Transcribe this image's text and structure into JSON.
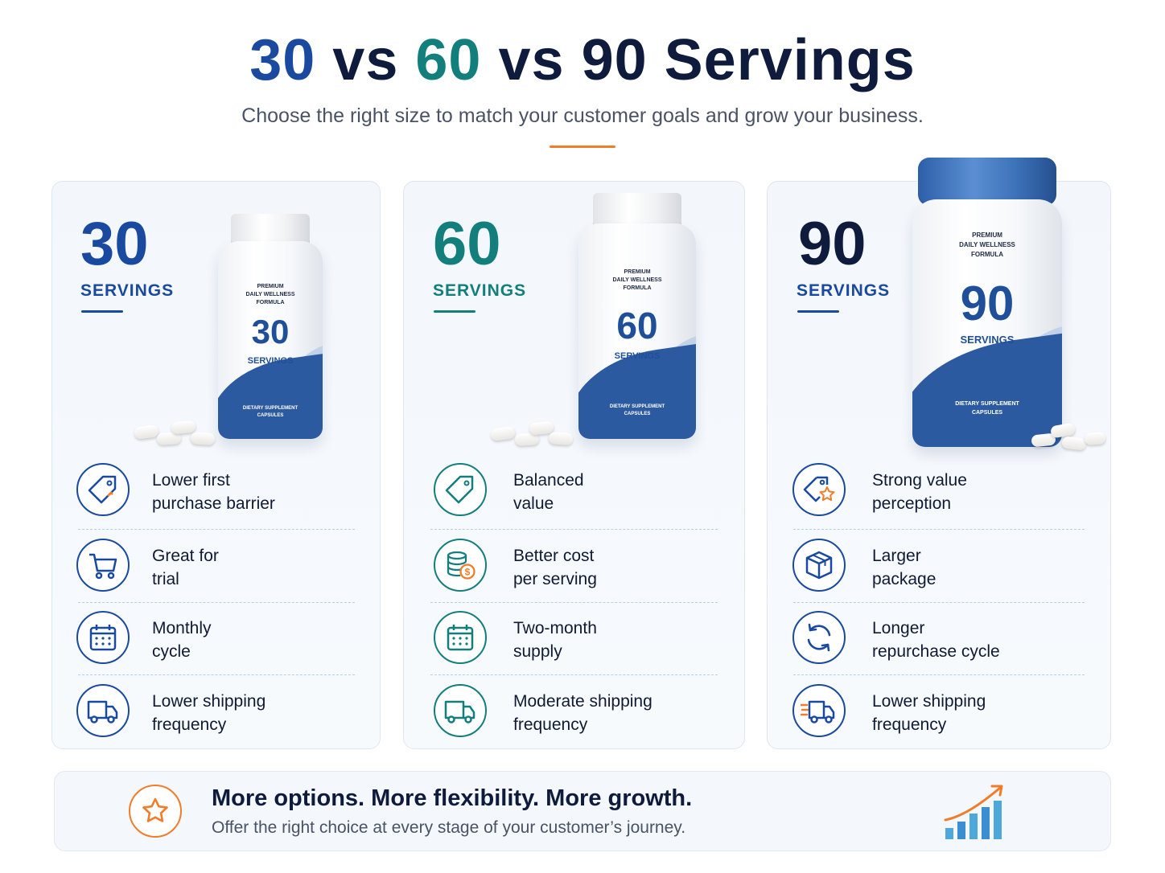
{
  "header": {
    "title_parts": [
      "30",
      " vs ",
      "60",
      " vs ",
      "90",
      " Servings"
    ],
    "subtitle": "Choose the right size to match your customer goals and grow your business."
  },
  "colors": {
    "navy": "#0f1b3d",
    "blue": "#1a4aa0",
    "teal": "#137f7c",
    "orange": "#f07d2a"
  },
  "cards": [
    {
      "number": "30",
      "label": "SERVINGS",
      "bottle": {
        "line1": "PREMIUM",
        "line2": "DAILY WELLNESS",
        "line3": "FORMULA",
        "number": "30",
        "servings": "SERVINGS",
        "footer1": "DIETARY SUPPLEMENT",
        "footer2": "CAPSULES"
      },
      "features": [
        {
          "icon": "price-tag-icon",
          "line1": "Lower first",
          "line2": "purchase barrier"
        },
        {
          "icon": "shopping-cart-icon",
          "line1": "Great for",
          "line2": "trial"
        },
        {
          "icon": "calendar-icon",
          "line1": "Monthly",
          "line2": "cycle"
        },
        {
          "icon": "delivery-truck-icon",
          "line1": "Lower shipping",
          "line2": "frequency"
        }
      ]
    },
    {
      "number": "60",
      "label": "SERVINGS",
      "bottle": {
        "line1": "PREMIUM",
        "line2": "DAILY WELLNESS",
        "line3": "FORMULA",
        "number": "60",
        "servings": "SERVINGS",
        "footer1": "DIETARY SUPPLEMENT",
        "footer2": "CAPSULES"
      },
      "features": [
        {
          "icon": "price-tag-icon",
          "line1": "Balanced",
          "line2": "value"
        },
        {
          "icon": "coins-dollar-icon",
          "line1": "Better cost",
          "line2": "per serving"
        },
        {
          "icon": "calendar-icon",
          "line1": "Two-month",
          "line2": "supply"
        },
        {
          "icon": "delivery-truck-icon",
          "line1": "Moderate shipping",
          "line2": "frequency"
        }
      ]
    },
    {
      "number": "90",
      "label": "SERVINGS",
      "bottle": {
        "line1": "PREMIUM",
        "line2": "DAILY WELLNESS",
        "line3": "FORMULA",
        "number": "90",
        "servings": "SERVINGS",
        "footer1": "DIETARY SUPPLEMENT",
        "footer2": "CAPSULES"
      },
      "features": [
        {
          "icon": "tag-star-icon",
          "line1": "Strong value",
          "line2": "perception"
        },
        {
          "icon": "package-box-icon",
          "line1": "Larger",
          "line2": "package"
        },
        {
          "icon": "refresh-cycle-icon",
          "line1": "Longer",
          "line2": "repurchase cycle"
        },
        {
          "icon": "fast-delivery-truck-icon",
          "line1": "Lower shipping",
          "line2": "frequency"
        }
      ]
    }
  ],
  "banner": {
    "icon": "star-icon",
    "headline": "More options. More flexibility. More growth.",
    "subtext": "Offer the right choice at every stage of your customer’s journey.",
    "chart_icon": "growth-bar-chart-icon"
  }
}
